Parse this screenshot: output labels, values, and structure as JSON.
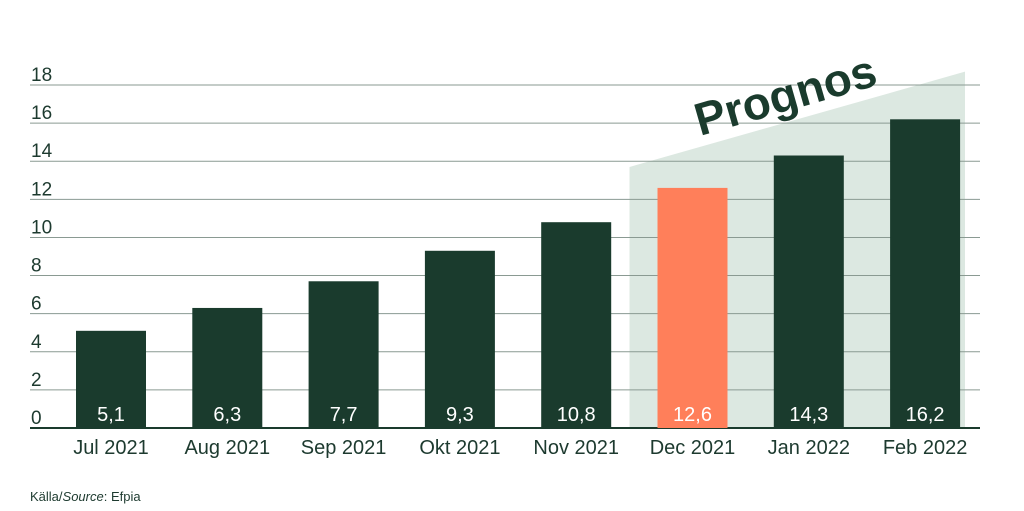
{
  "chart_data": {
    "type": "bar",
    "categories": [
      "Jul 2021",
      "Aug 2021",
      "Sep 2021",
      "Okt 2021",
      "Nov 2021",
      "Dec 2021",
      "Jan 2022",
      "Feb 2022"
    ],
    "values": [
      5.1,
      6.3,
      7.7,
      9.3,
      10.8,
      12.6,
      14.3,
      16.2
    ],
    "value_labels": [
      "5,1",
      "6,3",
      "7,7",
      "9,3",
      "10,8",
      "12,6",
      "14,3",
      "16,2"
    ],
    "highlight_index": 5,
    "forecast_from_index": 5,
    "forecast_label": "Prognos",
    "ylim": [
      0,
      18
    ],
    "yticks": [
      0,
      2,
      4,
      6,
      8,
      10,
      12,
      14,
      16,
      18
    ],
    "grid": true,
    "colors": {
      "bar": "#1a3b2d",
      "highlight": "#ff7f5a",
      "forecast_band": "#dce8e1",
      "grid": "#8a9a92",
      "text": "#1d3a2f"
    }
  },
  "source": {
    "prefix": "Källa/",
    "italic": "Source",
    "suffix": ": Efpia"
  }
}
